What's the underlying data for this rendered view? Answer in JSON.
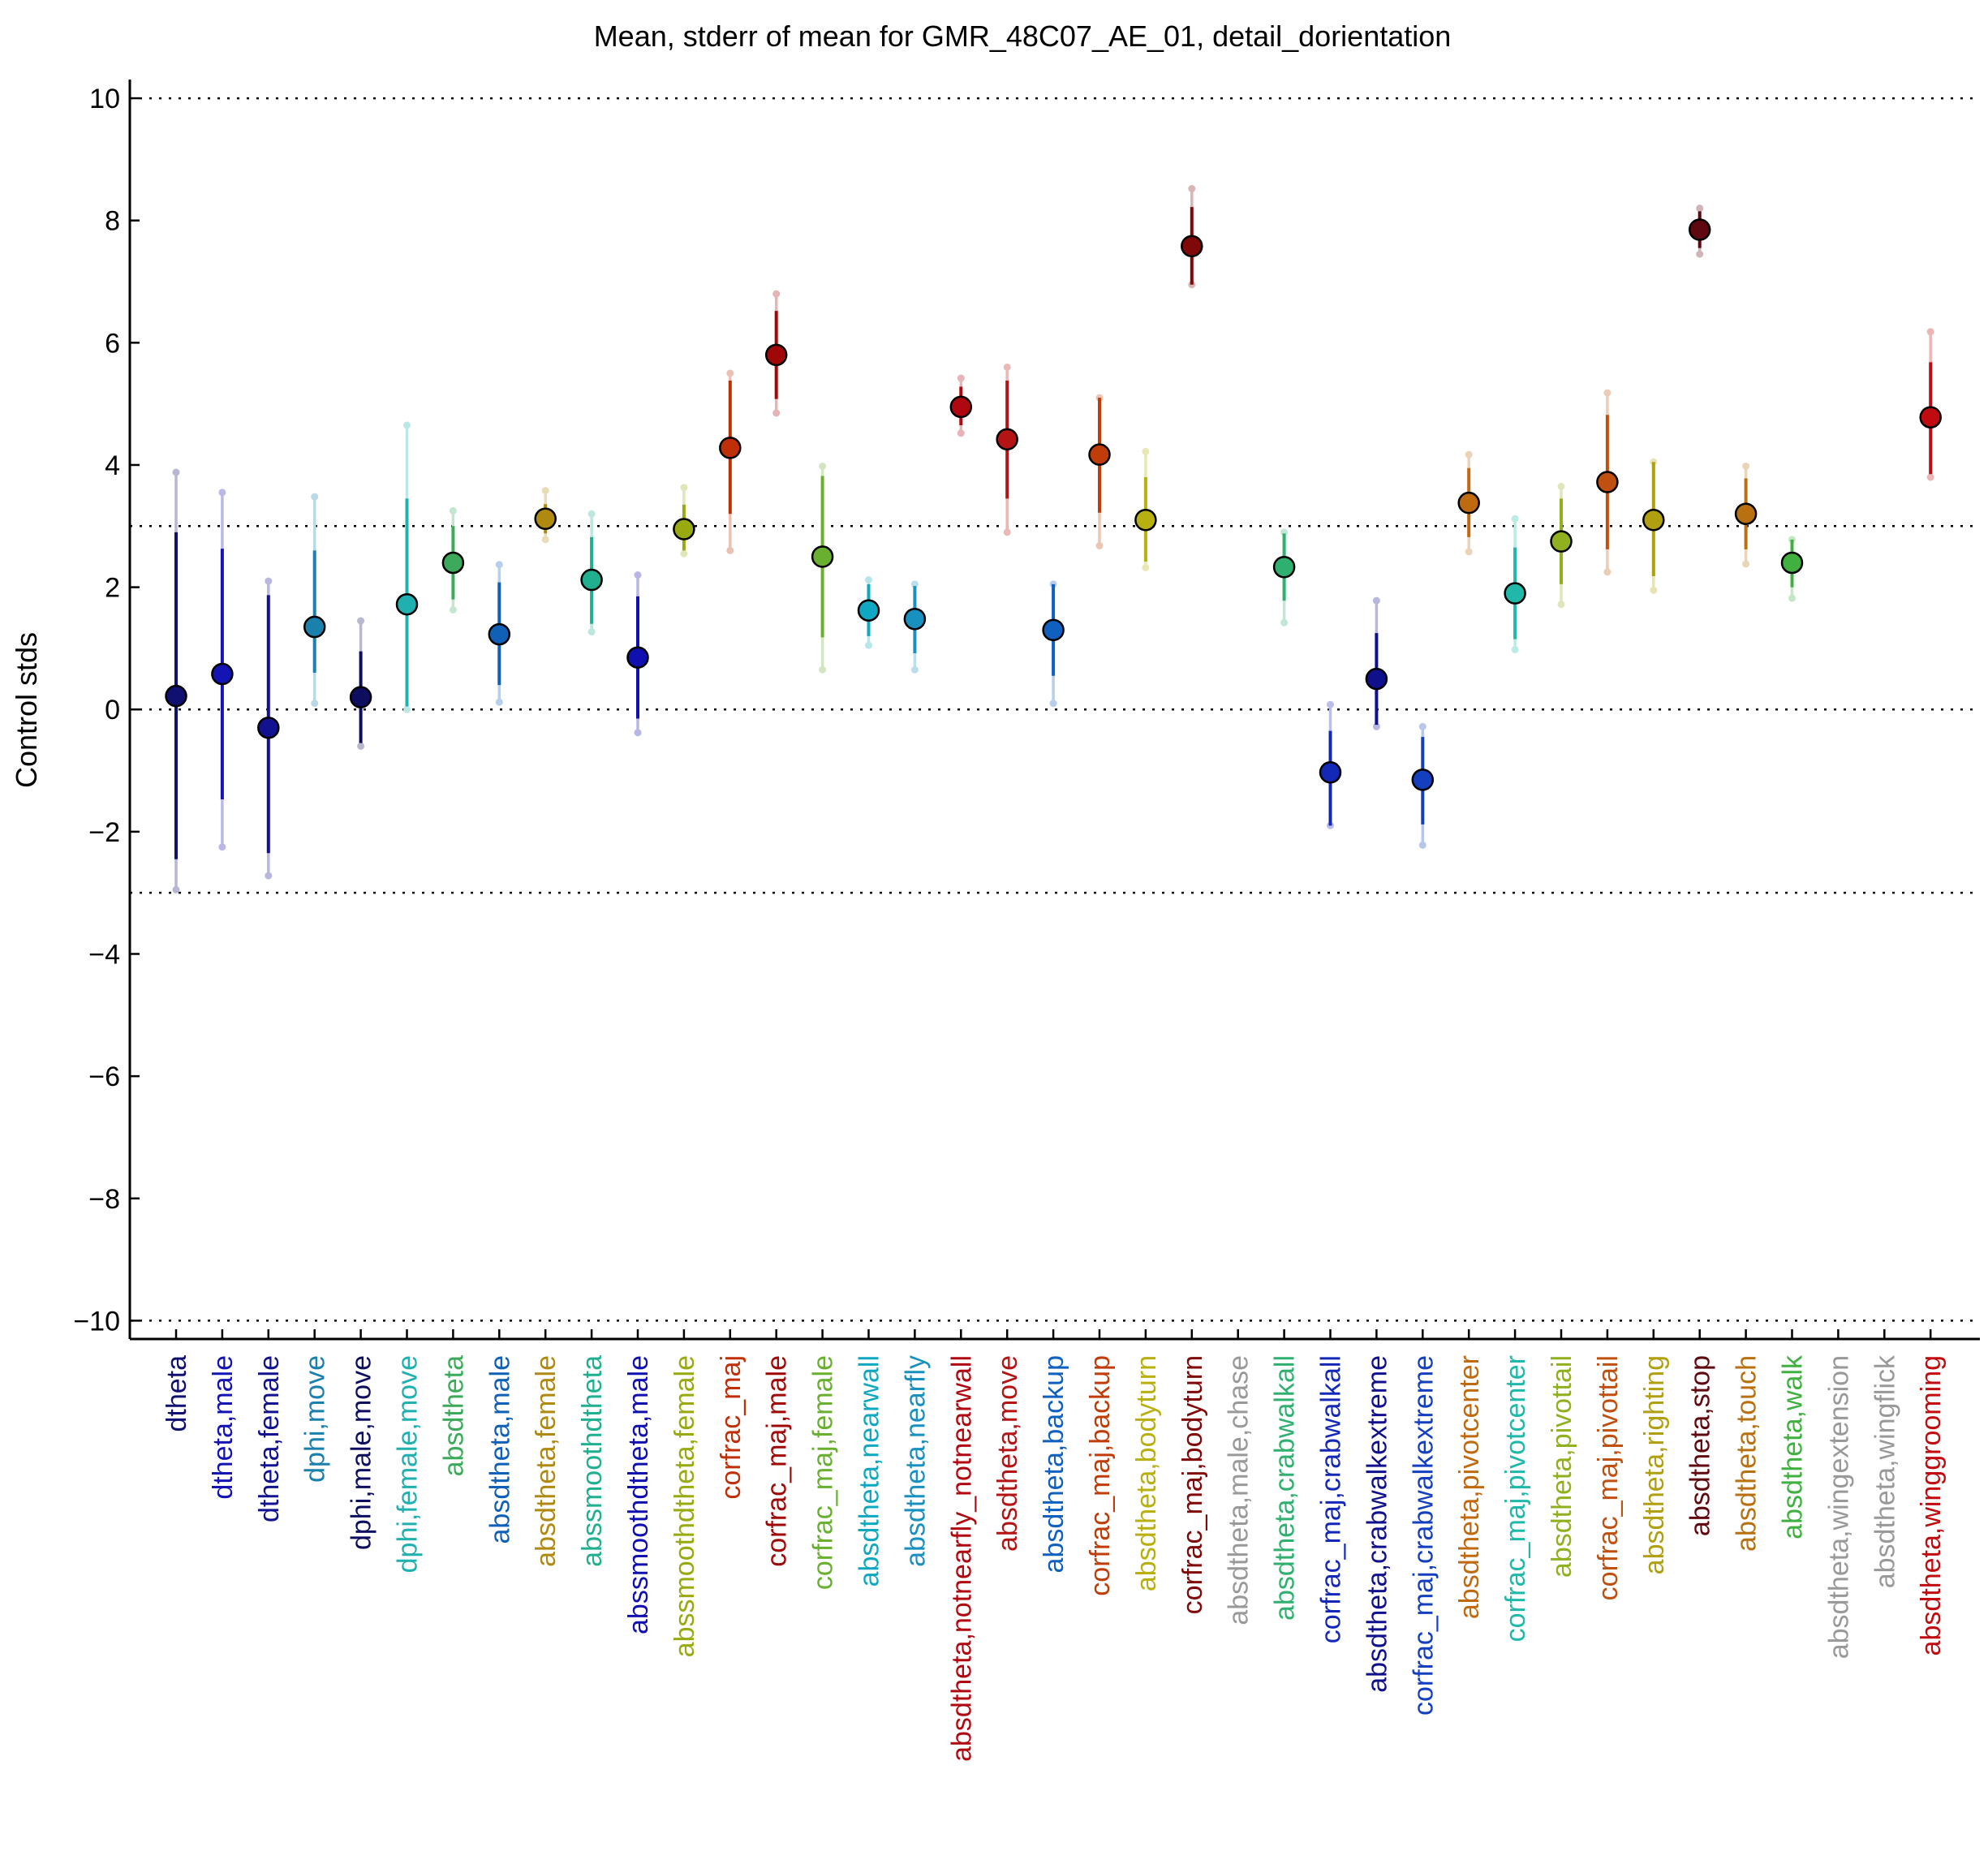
{
  "chart_data": {
    "type": "errorbar",
    "title": "Mean, stderr of mean for GMR_48C07_AE_01, detail_dorientation",
    "ylabel": "Control stds",
    "xlabel": "",
    "ylim": [
      -10.3,
      10.2
    ],
    "yticks": [
      -10,
      -8,
      -6,
      -4,
      -2,
      0,
      2,
      4,
      6,
      8,
      10
    ],
    "ytick_labels": [
      "−10",
      "−8",
      "−6",
      "−4",
      "−2",
      "0",
      "2",
      "4",
      "6",
      "8",
      "10"
    ],
    "hlines": [
      -10,
      -3,
      0,
      3,
      10
    ],
    "points": [
      {
        "label": "dtheta",
        "color": "#101070",
        "mean": 0.22,
        "se_low": -2.45,
        "se_high": 2.9,
        "outer_low": -2.95,
        "outer_high": 3.88
      },
      {
        "label": "dtheta,male",
        "color": "#1414b4",
        "mean": 0.58,
        "se_low": -1.47,
        "se_high": 2.63,
        "outer_low": -2.25,
        "outer_high": 3.55
      },
      {
        "label": "dtheta,female",
        "color": "#121290",
        "mean": -0.3,
        "se_low": -2.35,
        "se_high": 1.87,
        "outer_low": -2.72,
        "outer_high": 2.1
      },
      {
        "label": "dphi,move",
        "color": "#1a80ac",
        "mean": 1.35,
        "se_low": 0.6,
        "se_high": 2.6,
        "outer_low": 0.1,
        "outer_high": 3.48
      },
      {
        "label": "dphi,male,move",
        "color": "#0e0e60",
        "mean": 0.2,
        "se_low": -0.55,
        "se_high": 0.95,
        "outer_low": -0.6,
        "outer_high": 1.45
      },
      {
        "label": "dphi,female,move",
        "color": "#20b0b0",
        "mean": 1.72,
        "se_low": 0.05,
        "se_high": 3.45,
        "outer_low": 0.0,
        "outer_high": 4.65
      },
      {
        "label": "absdtheta",
        "color": "#3caa5a",
        "mean": 2.4,
        "se_low": 1.8,
        "se_high": 3.0,
        "outer_low": 1.63,
        "outer_high": 3.25
      },
      {
        "label": "absdtheta,male",
        "color": "#1060b8",
        "mean": 1.23,
        "se_low": 0.4,
        "se_high": 2.08,
        "outer_low": 0.12,
        "outer_high": 2.37
      },
      {
        "label": "absdtheta,female",
        "color": "#b08a10",
        "mean": 3.12,
        "se_low": 2.88,
        "se_high": 3.36,
        "outer_low": 2.78,
        "outer_high": 3.58
      },
      {
        "label": "abssmoothdtheta",
        "color": "#20b090",
        "mean": 2.12,
        "se_low": 1.4,
        "se_high": 2.82,
        "outer_low": 1.27,
        "outer_high": 3.2
      },
      {
        "label": "abssmoothdtheta,male",
        "color": "#1010b0",
        "mean": 0.85,
        "se_low": -0.15,
        "se_high": 1.85,
        "outer_low": -0.38,
        "outer_high": 2.2
      },
      {
        "label": "abssmoothdtheta,female",
        "color": "#98aa10",
        "mean": 2.95,
        "se_low": 2.6,
        "se_high": 3.35,
        "outer_low": 2.55,
        "outer_high": 3.63
      },
      {
        "label": "corfrac_maj",
        "color": "#c03008",
        "mean": 4.28,
        "se_low": 3.2,
        "se_high": 5.38,
        "outer_low": 2.6,
        "outer_high": 5.5
      },
      {
        "label": "corfrac_maj,male",
        "color": "#a00808",
        "mean": 5.8,
        "se_low": 5.08,
        "se_high": 6.52,
        "outer_low": 4.85,
        "outer_high": 6.8
      },
      {
        "label": "corfrac_maj,female",
        "color": "#6ab030",
        "mean": 2.5,
        "se_low": 1.18,
        "se_high": 3.82,
        "outer_low": 0.65,
        "outer_high": 3.98
      },
      {
        "label": "absdtheta,nearwall",
        "color": "#10a8c0",
        "mean": 1.62,
        "se_low": 1.2,
        "se_high": 2.05,
        "outer_low": 1.05,
        "outer_high": 2.12
      },
      {
        "label": "absdtheta,nearfly",
        "color": "#1890c0",
        "mean": 1.48,
        "se_low": 0.92,
        "se_high": 2.02,
        "outer_low": 0.65,
        "outer_high": 2.05
      },
      {
        "label": "absdtheta,notnearfly_notnearwall",
        "color": "#b00810",
        "mean": 4.95,
        "se_low": 4.65,
        "se_high": 5.28,
        "outer_low": 4.52,
        "outer_high": 5.42
      },
      {
        "label": "absdtheta,move",
        "color": "#b41414",
        "mean": 4.42,
        "se_low": 3.45,
        "se_high": 5.38,
        "outer_low": 2.9,
        "outer_high": 5.6
      },
      {
        "label": "absdtheta,backup",
        "color": "#1060c0",
        "mean": 1.3,
        "se_low": 0.55,
        "se_high": 2.05,
        "outer_low": 0.1,
        "outer_high": 2.05
      },
      {
        "label": "corfrac_maj,backup",
        "color": "#c03c08",
        "mean": 4.17,
        "se_low": 3.22,
        "se_high": 5.1,
        "outer_low": 2.68,
        "outer_high": 5.1
      },
      {
        "label": "absdtheta,bodyturn",
        "color": "#b8b010",
        "mean": 3.1,
        "se_low": 2.42,
        "se_high": 3.8,
        "outer_low": 2.32,
        "outer_high": 4.22
      },
      {
        "label": "corfrac_maj,bodyturn",
        "color": "#800808",
        "mean": 7.58,
        "se_low": 6.95,
        "se_high": 8.22,
        "outer_low": 6.95,
        "outer_high": 8.52
      },
      {
        "label": "absdtheta,male,chase",
        "color": "#999999",
        "mean": null
      },
      {
        "label": "absdtheta,crabwalkall",
        "color": "#30b070",
        "mean": 2.33,
        "se_low": 1.78,
        "se_high": 2.88,
        "outer_low": 1.42,
        "outer_high": 2.9
      },
      {
        "label": "corfrac_maj,crabwalkall",
        "color": "#1428b8",
        "mean": -1.03,
        "se_low": -1.9,
        "se_high": -0.35,
        "outer_low": -1.9,
        "outer_high": 0.08
      },
      {
        "label": "absdtheta,crabwalkextreme",
        "color": "#10108c",
        "mean": 0.5,
        "se_low": -0.25,
        "se_high": 1.25,
        "outer_low": -0.28,
        "outer_high": 1.78
      },
      {
        "label": "corfrac_maj,crabwalkextreme",
        "color": "#1440c0",
        "mean": -1.15,
        "se_low": -1.88,
        "se_high": -0.45,
        "outer_low": -2.22,
        "outer_high": -0.28
      },
      {
        "label": "absdtheta,pivotcenter",
        "color": "#c06a10",
        "mean": 3.38,
        "se_low": 2.82,
        "se_high": 3.95,
        "outer_low": 2.58,
        "outer_high": 4.17
      },
      {
        "label": "corfrac_maj,pivotcenter",
        "color": "#20b8a8",
        "mean": 1.9,
        "se_low": 1.15,
        "se_high": 2.65,
        "outer_low": 0.98,
        "outer_high": 3.12
      },
      {
        "label": "absdtheta,pivottail",
        "color": "#90b020",
        "mean": 2.75,
        "se_low": 2.05,
        "se_high": 3.45,
        "outer_low": 1.72,
        "outer_high": 3.65
      },
      {
        "label": "corfrac_maj,pivottail",
        "color": "#c05010",
        "mean": 3.72,
        "se_low": 2.62,
        "se_high": 4.82,
        "outer_low": 2.25,
        "outer_high": 5.18
      },
      {
        "label": "absdtheta,righting",
        "color": "#b0a010",
        "mean": 3.1,
        "se_low": 2.18,
        "se_high": 4.05,
        "outer_low": 1.95,
        "outer_high": 4.05
      },
      {
        "label": "absdtheta,stop",
        "color": "#600810",
        "mean": 7.85,
        "se_low": 7.55,
        "se_high": 8.15,
        "outer_low": 7.45,
        "outer_high": 8.2
      },
      {
        "label": "absdtheta,touch",
        "color": "#b87010",
        "mean": 3.2,
        "se_low": 2.62,
        "se_high": 3.78,
        "outer_low": 2.38,
        "outer_high": 3.98
      },
      {
        "label": "absdtheta,walk",
        "color": "#40b040",
        "mean": 2.4,
        "se_low": 2.0,
        "se_high": 2.78,
        "outer_low": 1.82,
        "outer_high": 2.78
      },
      {
        "label": "absdtheta,wingextension",
        "color": "#999999",
        "mean": null
      },
      {
        "label": "absdtheta,wingflick",
        "color": "#999999",
        "mean": null
      },
      {
        "label": "absdtheta,winggrooming",
        "color": "#c00c10",
        "mean": 4.78,
        "se_low": 3.85,
        "se_high": 5.68,
        "outer_low": 3.8,
        "outer_high": 6.18
      }
    ]
  }
}
